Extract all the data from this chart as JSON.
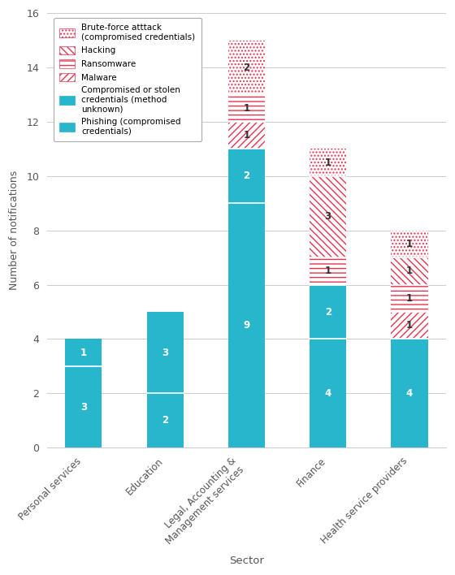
{
  "categories": [
    "Personal services",
    "Education",
    "Legal, Accounting &\nManagement services",
    "Finance",
    "Health service providers"
  ],
  "plot_order": [
    "Phishing",
    "Compromised",
    "Malware",
    "Ransomware",
    "Hacking",
    "Brute-force"
  ],
  "legend_order": [
    "Brute-force",
    "Hacking",
    "Ransomware",
    "Malware",
    "Compromised",
    "Phishing"
  ],
  "values": {
    "Phishing": [
      3,
      2,
      9,
      4,
      4
    ],
    "Compromised": [
      1,
      3,
      2,
      2,
      0
    ],
    "Malware": [
      0,
      0,
      1,
      0,
      1
    ],
    "Ransomware": [
      0,
      0,
      1,
      1,
      1
    ],
    "Hacking": [
      0,
      0,
      0,
      3,
      1
    ],
    "Brute-force": [
      0,
      0,
      2,
      1,
      1
    ]
  },
  "labels": {
    "Phishing": "Phishing (compromised\ncredentials)",
    "Compromised": "Compromised or stolen\ncredentials (method\nunknown)",
    "Malware": "Malware",
    "Ransomware": "Ransomware",
    "Hacking": "Hacking",
    "Brute-force": "Brute-force atttack\n(compromised credentials)"
  },
  "face_colors": {
    "Phishing": "#28b6cc",
    "Compromised": "#28b6cc",
    "Malware": "#ffffff",
    "Ransomware": "#ffffff",
    "Hacking": "#ffffff",
    "Brute-force": "#ffffff"
  },
  "hatch_colors": {
    "Phishing": "#28b6cc",
    "Compromised": "#28b6cc",
    "Malware": "#e8324e",
    "Ransomware": "#e8324e",
    "Hacking": "#e8324e",
    "Brute-force": "#e8324e"
  },
  "hatches": {
    "Phishing": "~~~",
    "Compromised": "|||",
    "Malware": "////",
    "Ransomware": "---",
    "Hacking": "\\\\\\\\",
    "Brute-force": "...."
  },
  "text_colors": {
    "Phishing": "white",
    "Compromised": "white",
    "Malware": "#333333",
    "Ransomware": "#333333",
    "Hacking": "#333333",
    "Brute-force": "#333333"
  },
  "ylabel": "Number of notifications",
  "xlabel": "Sector",
  "ylim": [
    0,
    16
  ],
  "yticks": [
    0,
    2,
    4,
    6,
    8,
    10,
    12,
    14,
    16
  ],
  "bar_width": 0.45,
  "figsize": [
    5.6,
    7.08
  ],
  "dpi": 100,
  "bg": "#ffffff"
}
